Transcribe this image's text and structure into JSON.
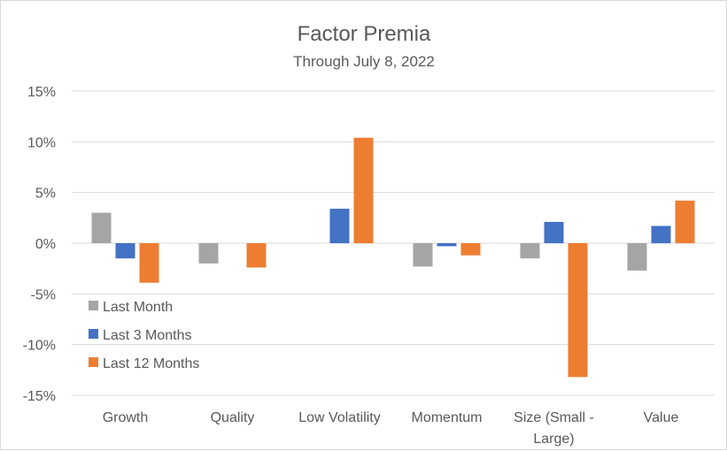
{
  "chart_data": {
    "type": "bar",
    "title": "Factor Premia",
    "subtitle": "Through July 8, 2022",
    "categories": [
      "Growth",
      "Quality",
      "Low Volatility",
      "Momentum",
      "Size (Small - Large)",
      "Value"
    ],
    "category_lines": [
      [
        "Growth"
      ],
      [
        "Quality"
      ],
      [
        "Low Volatility"
      ],
      [
        "Momentum"
      ],
      [
        "Size (Small -",
        "Large)"
      ],
      [
        "Value"
      ]
    ],
    "series": [
      {
        "name": "Last Month",
        "color": "#a5a5a5",
        "values": [
          3.0,
          -2.0,
          0.0,
          -2.3,
          -1.5,
          -2.7
        ]
      },
      {
        "name": "Last 3 Months",
        "color": "#4472c4",
        "values": [
          -1.5,
          0.0,
          3.4,
          -0.3,
          2.1,
          1.7
        ]
      },
      {
        "name": "Last 12 Months",
        "color": "#ed7d31",
        "values": [
          -3.9,
          -2.4,
          10.4,
          -1.2,
          -13.2,
          4.2
        ]
      }
    ],
    "ylim": [
      -15,
      15
    ],
    "yticks": [
      15,
      10,
      5,
      0,
      -5,
      -10,
      -15
    ],
    "ytick_labels": [
      "15%",
      "10%",
      "5%",
      "0%",
      "-5%",
      "-10%",
      "-15%"
    ],
    "grid": true,
    "legend": "inside-bottom-left"
  }
}
